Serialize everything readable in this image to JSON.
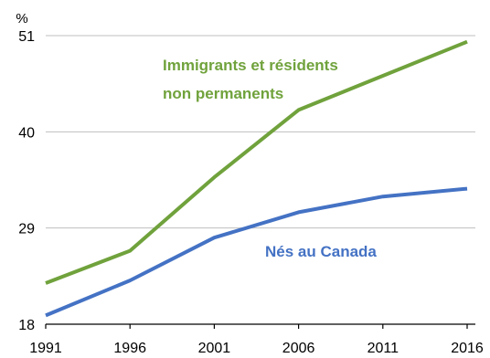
{
  "chart_data": {
    "type": "line",
    "unit_label": "%",
    "x": [
      "1991",
      "1996",
      "2001",
      "2006",
      "2011",
      "2016"
    ],
    "ylim": [
      18,
      51
    ],
    "y_ticks": [
      18,
      29,
      40,
      51
    ],
    "grid": "horizontal",
    "series": [
      {
        "name": "Immigrants et résidents non permanents",
        "label_lines": [
          "Immigrants et résidents",
          "non permanents"
        ],
        "color": "#70a23c",
        "values": [
          22.7,
          26.4,
          34.8,
          42.5,
          46.4,
          50.3
        ]
      },
      {
        "name": "Nés au Canada",
        "label_lines": [
          "Nés au Canada"
        ],
        "color": "#4472c4",
        "values": [
          19.0,
          23.0,
          27.9,
          30.8,
          32.6,
          33.5
        ]
      }
    ]
  }
}
